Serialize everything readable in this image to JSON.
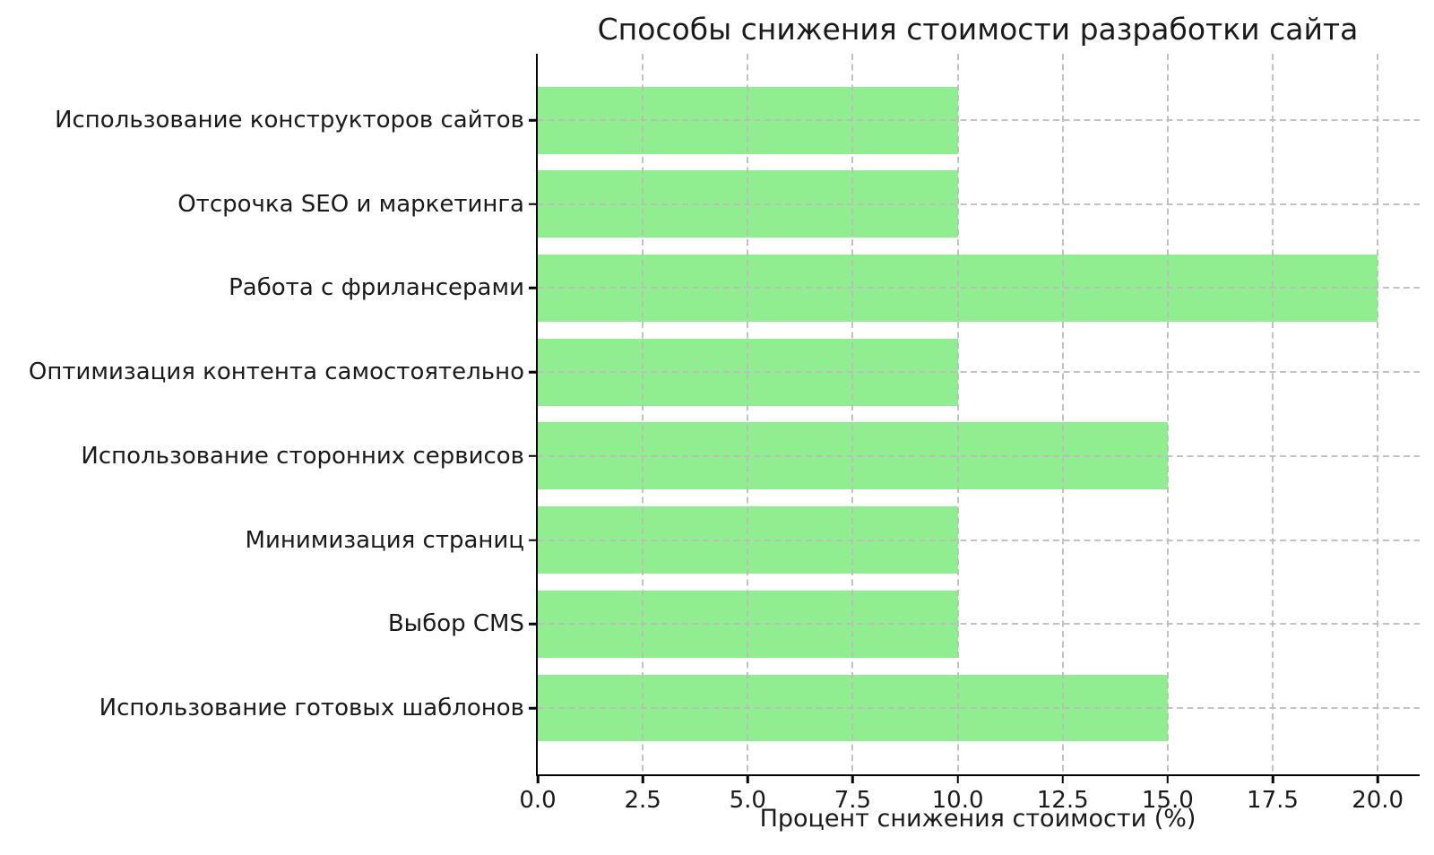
{
  "chart_data": {
    "type": "bar",
    "orientation": "horizontal",
    "title": "Способы снижения стоимости разработки сайта",
    "xlabel": "Процент снижения стоимости (%)",
    "ylabel": "",
    "categories": [
      "Использование конструкторов сайтов",
      "Отсрочка SEO и маркетинга",
      "Работа с фрилансерами",
      "Оптимизация контента самостоятельно",
      "Использование сторонних сервисов",
      "Минимизация страниц",
      "Выбор CMS",
      "Использование готовых шаблонов"
    ],
    "values": [
      10,
      10,
      20,
      10,
      15,
      10,
      10,
      15
    ],
    "xticks": [
      0,
      2.5,
      5,
      7.5,
      10,
      12.5,
      15,
      17.5,
      20
    ],
    "xtick_labels": [
      "0.0",
      "2.5",
      "5.0",
      "7.5",
      "10.0",
      "12.5",
      "15.0",
      "17.5",
      "20.0"
    ],
    "xlim": [
      0,
      21
    ],
    "grid": true,
    "grid_linestyle": "dashed",
    "grid_above_bars": true,
    "legend": "none",
    "bar_color": "#90EE90",
    "spine_color": "#000000",
    "background_color": "#FFFFFF"
  }
}
